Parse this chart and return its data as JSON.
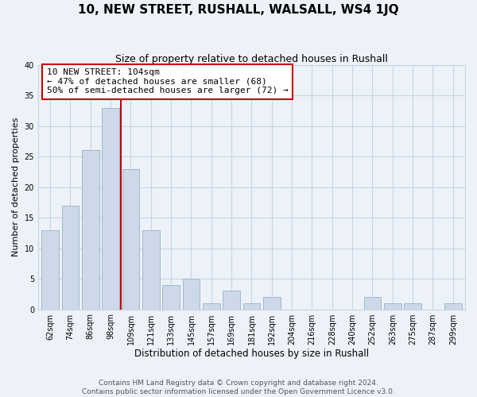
{
  "title": "10, NEW STREET, RUSHALL, WALSALL, WS4 1JQ",
  "subtitle": "Size of property relative to detached houses in Rushall",
  "xlabel": "Distribution of detached houses by size in Rushall",
  "ylabel": "Number of detached properties",
  "bar_labels": [
    "62sqm",
    "74sqm",
    "86sqm",
    "98sqm",
    "109sqm",
    "121sqm",
    "133sqm",
    "145sqm",
    "157sqm",
    "169sqm",
    "181sqm",
    "192sqm",
    "204sqm",
    "216sqm",
    "228sqm",
    "240sqm",
    "252sqm",
    "263sqm",
    "275sqm",
    "287sqm",
    "299sqm"
  ],
  "bar_values": [
    13,
    17,
    26,
    33,
    23,
    13,
    4,
    5,
    1,
    3,
    1,
    2,
    0,
    0,
    0,
    0,
    2,
    1,
    1,
    0,
    1
  ],
  "bar_color": "#cdd9e8",
  "bar_edge_color": "#a0b8cc",
  "vline_x": 3.5,
  "vline_color": "#cc0000",
  "annotation_text": "10 NEW STREET: 104sqm\n← 47% of detached houses are smaller (68)\n50% of semi-detached houses are larger (72) →",
  "annotation_box_color": "#ffffff",
  "annotation_box_edge": "#cc0000",
  "ylim": [
    0,
    40
  ],
  "yticks": [
    0,
    5,
    10,
    15,
    20,
    25,
    30,
    35,
    40
  ],
  "grid_color": "#c8d4e4",
  "background_color": "#edf2f9",
  "footer": "Contains HM Land Registry data © Crown copyright and database right 2024.\nContains public sector information licensed under the Open Government Licence v3.0.",
  "title_fontsize": 11,
  "subtitle_fontsize": 9,
  "xlabel_fontsize": 8.5,
  "ylabel_fontsize": 8,
  "tick_fontsize": 7,
  "annotation_fontsize": 8,
  "footer_fontsize": 6.5
}
